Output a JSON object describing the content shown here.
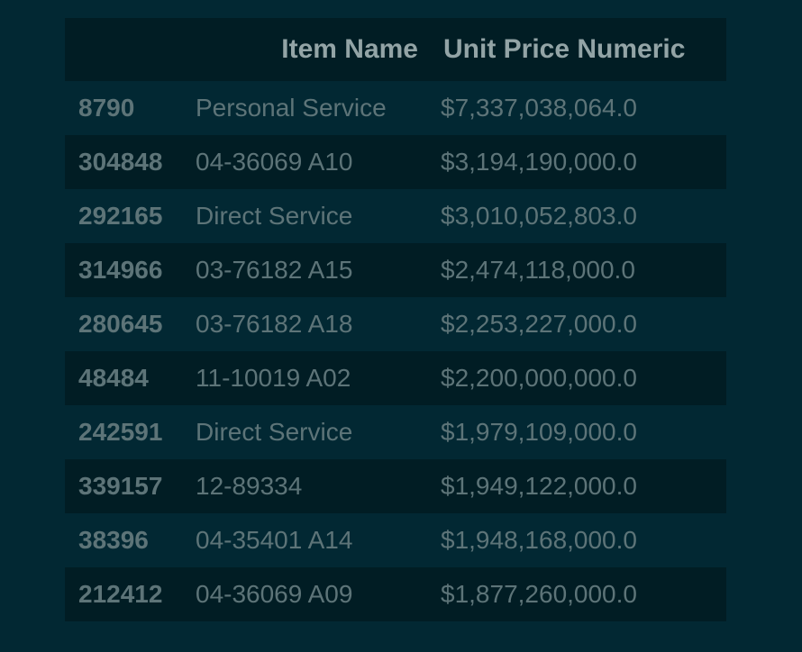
{
  "table": {
    "columns": [
      "",
      "Item Name",
      "Unit Price Numeric"
    ],
    "rows": [
      {
        "index": "8790",
        "item_name": "Personal Service",
        "unit_price": "$7,337,038,064.0"
      },
      {
        "index": "304848",
        "item_name": "04-36069 A10",
        "unit_price": "$3,194,190,000.0"
      },
      {
        "index": "292165",
        "item_name": "Direct Service",
        "unit_price": "$3,010,052,803.0"
      },
      {
        "index": "314966",
        "item_name": "03-76182 A15",
        "unit_price": "$2,474,118,000.0"
      },
      {
        "index": "280645",
        "item_name": "03-76182 A18",
        "unit_price": "$2,253,227,000.0"
      },
      {
        "index": "48484",
        "item_name": "11-10019 A02",
        "unit_price": "$2,200,000,000.0"
      },
      {
        "index": "242591",
        "item_name": "Direct Service",
        "unit_price": "$1,979,109,000.0"
      },
      {
        "index": "339157",
        "item_name": "12-89334",
        "unit_price": "$1,949,122,000.0"
      },
      {
        "index": "38396",
        "item_name": "04-35401 A14",
        "unit_price": "$1,948,168,000.0"
      },
      {
        "index": "212412",
        "item_name": "04-36069 A09",
        "unit_price": "$1,877,260,000.0"
      }
    ]
  },
  "colors": {
    "background": "#022833",
    "header_background": "#011d24",
    "row_alt_background": "#011d24",
    "header_text": "#93a4a6",
    "cell_text": "#5d7478"
  }
}
